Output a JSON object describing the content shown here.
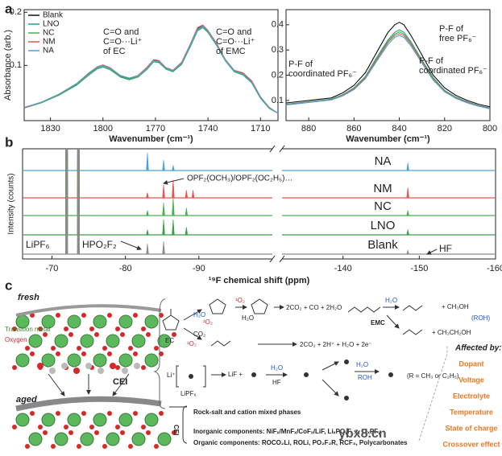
{
  "panel_labels": [
    "a",
    "b",
    "c"
  ],
  "chart_data": [
    {
      "type": "line",
      "xlabel": "Wavenumber (cm⁻¹)",
      "ylabel": "Absorbance (arb.)",
      "xlim": [
        1845,
        1700
      ],
      "xticks": [
        1830,
        1800,
        1770,
        1740,
        1710
      ],
      "ylim": [
        -0.004,
        0.205
      ],
      "yticks": [
        0.1,
        0.2
      ],
      "legend": "upper left",
      "x": [
        1845,
        1835,
        1825,
        1815,
        1808,
        1803,
        1800,
        1796,
        1790,
        1785,
        1780,
        1775,
        1771,
        1768,
        1764,
        1760,
        1755,
        1750,
        1746,
        1743,
        1740,
        1735,
        1730,
        1725,
        1720,
        1715,
        1710,
        1705,
        1700
      ],
      "series": [
        {
          "name": "Blank",
          "color": "#111111",
          "values": [
            0.02,
            0.03,
            0.045,
            0.065,
            0.085,
            0.097,
            0.1,
            0.095,
            0.08,
            0.075,
            0.08,
            0.095,
            0.11,
            0.108,
            0.095,
            0.09,
            0.105,
            0.14,
            0.17,
            0.175,
            0.165,
            0.14,
            0.11,
            0.09,
            0.085,
            0.07,
            0.04,
            0.02,
            0.01
          ]
        },
        {
          "name": "LNO",
          "color": "#2a9d8f",
          "values": [
            0.02,
            0.03,
            0.044,
            0.063,
            0.082,
            0.094,
            0.097,
            0.092,
            0.078,
            0.073,
            0.078,
            0.092,
            0.107,
            0.105,
            0.093,
            0.088,
            0.102,
            0.136,
            0.165,
            0.171,
            0.162,
            0.137,
            0.108,
            0.088,
            0.082,
            0.067,
            0.038,
            0.019,
            0.01
          ]
        },
        {
          "name": "NC",
          "color": "#4caf50",
          "values": [
            0.02,
            0.03,
            0.044,
            0.064,
            0.083,
            0.095,
            0.098,
            0.093,
            0.079,
            0.074,
            0.079,
            0.093,
            0.108,
            0.106,
            0.094,
            0.089,
            0.103,
            0.138,
            0.167,
            0.173,
            0.163,
            0.138,
            0.109,
            0.089,
            0.083,
            0.068,
            0.039,
            0.019,
            0.01
          ]
        },
        {
          "name": "NM",
          "color": "#e8534f",
          "values": [
            0.02,
            0.031,
            0.046,
            0.066,
            0.086,
            0.098,
            0.101,
            0.096,
            0.081,
            0.076,
            0.081,
            0.096,
            0.111,
            0.109,
            0.096,
            0.091,
            0.106,
            0.141,
            0.171,
            0.176,
            0.166,
            0.141,
            0.111,
            0.091,
            0.086,
            0.071,
            0.041,
            0.021,
            0.01
          ]
        },
        {
          "name": "NA",
          "color": "#4aa3d8",
          "values": [
            0.021,
            0.031,
            0.046,
            0.066,
            0.085,
            0.097,
            0.1,
            0.095,
            0.081,
            0.076,
            0.08,
            0.094,
            0.109,
            0.107,
            0.095,
            0.09,
            0.104,
            0.139,
            0.168,
            0.174,
            0.164,
            0.139,
            0.11,
            0.09,
            0.084,
            0.069,
            0.04,
            0.02,
            0.01
          ]
        }
      ],
      "annotations": [
        [
          "C=O and",
          "C=O···Li⁺",
          "of EC"
        ],
        [
          "C=O and",
          "C=O···Li⁺",
          "of EMC"
        ]
      ]
    },
    {
      "type": "line",
      "xlabel": "Wavenumber (cm⁻¹)",
      "xlim": [
        890,
        800
      ],
      "xticks": [
        880,
        860,
        840,
        820,
        800
      ],
      "ylim": [
        0.02,
        0.46
      ],
      "yticks": [
        0.1,
        0.2,
        0.3,
        0.4
      ],
      "x": [
        890,
        880,
        875,
        870,
        865,
        860,
        855,
        850,
        845,
        842,
        840,
        838,
        835,
        830,
        825,
        820,
        815,
        810,
        805,
        800
      ],
      "series": [
        {
          "name": "Blank",
          "color": "#111111",
          "values": [
            0.09,
            0.1,
            0.105,
            0.11,
            0.13,
            0.16,
            0.21,
            0.29,
            0.37,
            0.4,
            0.41,
            0.4,
            0.36,
            0.28,
            0.2,
            0.15,
            0.12,
            0.1,
            0.085,
            0.075
          ]
        },
        {
          "name": "LNO",
          "color": "#2a9d8f",
          "values": [
            0.085,
            0.095,
            0.1,
            0.105,
            0.123,
            0.15,
            0.195,
            0.27,
            0.34,
            0.37,
            0.38,
            0.37,
            0.335,
            0.26,
            0.19,
            0.14,
            0.113,
            0.095,
            0.08,
            0.07
          ]
        },
        {
          "name": "NC",
          "color": "#4caf50",
          "values": [
            0.084,
            0.094,
            0.099,
            0.104,
            0.121,
            0.148,
            0.192,
            0.265,
            0.335,
            0.363,
            0.372,
            0.363,
            0.33,
            0.257,
            0.186,
            0.138,
            0.111,
            0.093,
            0.079,
            0.069
          ]
        },
        {
          "name": "NM",
          "color": "#e8534f",
          "values": [
            0.083,
            0.093,
            0.098,
            0.103,
            0.12,
            0.146,
            0.19,
            0.26,
            0.33,
            0.357,
            0.365,
            0.357,
            0.325,
            0.253,
            0.183,
            0.136,
            0.11,
            0.092,
            0.078,
            0.068
          ]
        },
        {
          "name": "NA",
          "color": "#4aa3d8",
          "values": [
            0.082,
            0.092,
            0.097,
            0.102,
            0.118,
            0.143,
            0.186,
            0.255,
            0.322,
            0.35,
            0.358,
            0.35,
            0.318,
            0.248,
            0.18,
            0.134,
            0.108,
            0.09,
            0.077,
            0.067
          ]
        }
      ],
      "annotations": [
        [
          "P-F of",
          "free PF₆⁻"
        ],
        [
          "P-F of",
          "coordinated PF₆⁻"
        ],
        [
          "P-F of",
          "coordinated PF₆⁻"
        ]
      ]
    },
    {
      "type": "spectrum",
      "xlabel": "¹⁹F chemical shift (ppm)",
      "ylabel": "Intensity (counts)",
      "xlim": [
        -66,
        -160
      ],
      "axis_break": [
        -100,
        -132
      ],
      "xticks": [
        -70,
        -80,
        -90,
        -140,
        -150,
        -160
      ],
      "series": [
        {
          "name": "NA",
          "color": "#4aa3d8",
          "x": [
            -72,
            -73.6,
            -83,
            -85.2,
            -86.5,
            -148.5
          ],
          "values": [
            200,
            200,
            14,
            8,
            4,
            6
          ]
        },
        {
          "name": "NM",
          "color": "#e8534f",
          "x": [
            -72,
            -73.6,
            -83,
            -85.2,
            -86.5,
            -88.3,
            -89.2,
            -148.5
          ],
          "values": [
            200,
            200,
            4,
            10,
            14,
            6,
            6,
            8
          ]
        },
        {
          "name": "NC",
          "color": "#4caf50",
          "x": [
            -72,
            -73.6,
            -83,
            -85.2,
            -86.5,
            -88.3,
            -148.5
          ],
          "values": [
            200,
            200,
            4,
            10,
            14,
            6,
            4
          ]
        },
        {
          "name": "LNO",
          "color": "#3d9e46",
          "x": [
            -72,
            -73.6,
            -83,
            -85.2,
            -86.5,
            -88.3,
            -148.5
          ],
          "values": [
            200,
            200,
            4,
            12,
            12,
            6,
            4
          ]
        },
        {
          "name": "Blank",
          "color": "#8a8a8a",
          "x": [
            -72,
            -73.6,
            -83,
            -85.2,
            -148.5
          ],
          "values": [
            200,
            200,
            8,
            10,
            3
          ]
        }
      ],
      "annotations": [
        "OPF₂(OCH₃)/OPF₂(OC₂H₅)…",
        "LiPF₆",
        "HPO₂F₂",
        "HF"
      ]
    }
  ],
  "diagram": {
    "structure": {
      "fresh": "fresh",
      "transition_metal": "Transition metal",
      "oxygen": "Oxygen",
      "aged": "aged",
      "cei": "CEI"
    },
    "reactions": {
      "ec": "EC",
      "singlet_oxygen": "¹O₂",
      "water": "H₂O",
      "carbon_dioxide": "CO₂",
      "ec_products_1": "2CO₂ + CO + 2H₂O",
      "ec_products_2": "2CO₂ + 2H⁺ + H₂O + 2e⁻",
      "emc": "EMC",
      "methanol": "+ CH₃OH",
      "roh": "(ROH)",
      "ethanol": "+ CH₃CH₂OH",
      "lipf6": "LiPF₆",
      "li": "Li⁺",
      "lif": "LiF +",
      "hf": "HF",
      "alcohol": "ROH",
      "r_group": "(R = CH₃ or C₂H₅)"
    },
    "cei": {
      "title": "CEI",
      "rock_salt": "Rock-salt and cation mixed phases",
      "inorganic": "Inorganic components: NiFₓ/MnFₓ/CoFₓ/LiF, LiₓPOᵧF_z, LiₓPFᵧ",
      "organic": "Organic components: ROCO₂Li, ROLi, PO₂F₂R, RCF₃, Polycarbonates"
    },
    "factors": {
      "title": "Affected by:",
      "items": [
        "Dopant",
        "Voltage",
        "Electrolyte",
        "Temperature",
        "State of charge",
        "Crossover effect"
      ]
    },
    "watermark": "ybx8.cn"
  }
}
